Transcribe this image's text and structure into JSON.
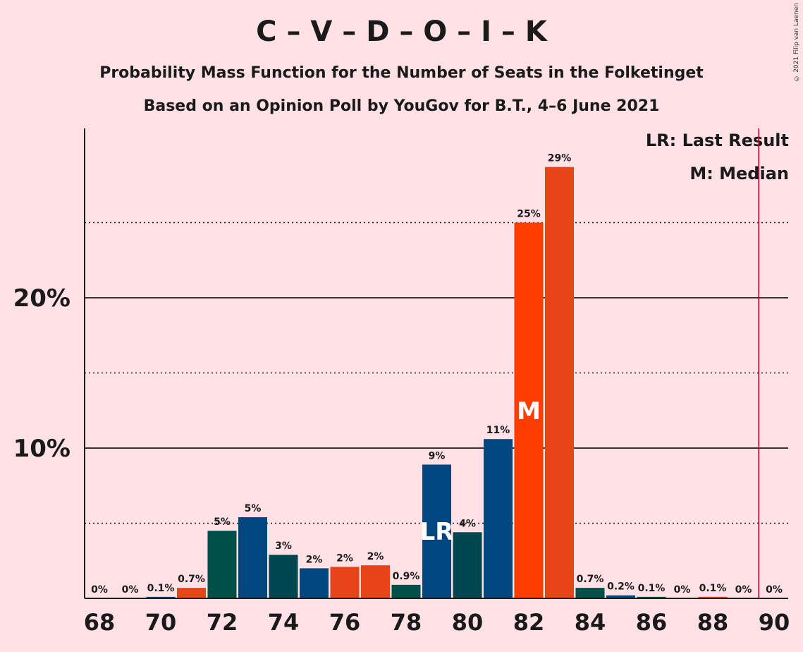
{
  "header": {
    "title": "C – V – D – O – I – K",
    "subtitle1": "Probability Mass Function for the Number of Seats in the Folketinget",
    "subtitle2": "Based on an Opinion Poll by YouGov for B.T., 4–6 June 2021",
    "copyright": "© 2021 Filip van Laenen"
  },
  "legend": {
    "last_result": "LR: Last Result",
    "median": "M: Median"
  },
  "chart_data": {
    "type": "bar",
    "x": [
      68,
      69,
      70,
      71,
      72,
      73,
      74,
      75,
      76,
      77,
      78,
      79,
      80,
      81,
      82,
      83,
      84,
      85,
      86,
      87,
      88,
      89,
      90
    ],
    "values": [
      0,
      0,
      0.1,
      0.7,
      4.5,
      5.4,
      2.9,
      2.0,
      2.1,
      2.2,
      0.9,
      8.9,
      4.4,
      10.6,
      25.0,
      28.7,
      0.7,
      0.2,
      0.1,
      0,
      0.1,
      0,
      0
    ],
    "labels": [
      "0%",
      "0%",
      "0.1%",
      "0.7%",
      "5%",
      "5%",
      "3%",
      "2%",
      "2%",
      "2%",
      "0.9%",
      "9%",
      "4%",
      "11%",
      "25%",
      "29%",
      "0.7%",
      "0.2%",
      "0.1%",
      "0%",
      "0.1%",
      "0%",
      "0%"
    ],
    "bar_colors": [
      "#E8441A",
      "#00504A",
      "#00467F",
      "#E8441A",
      "#00504A",
      "#00467F",
      "#00464F",
      "#00467F",
      "#E8441A",
      "#E8441A",
      "#00504A",
      "#00467F",
      "#00464F",
      "#00467F",
      "#FF3D00",
      "#E8441A",
      "#00504A",
      "#00467F",
      "#00464F",
      "#E8441A",
      "#E8441A",
      "#00504A",
      "#00467F"
    ],
    "xticks": [
      "68",
      "70",
      "72",
      "74",
      "76",
      "78",
      "80",
      "82",
      "84",
      "86",
      "88",
      "90"
    ],
    "yticks": [
      {
        "value": 10,
        "label": "10%"
      },
      {
        "value": 20,
        "label": "20%"
      }
    ],
    "ylim": [
      0,
      31.3
    ],
    "dotted_gridlines": [
      5,
      15,
      25
    ],
    "last_result": {
      "seat": 79,
      "label": "LR"
    },
    "median": {
      "seat": 82,
      "label": "M"
    },
    "majority_line": 89.5,
    "colors": {
      "background": "#FFE1E6",
      "majority_line": "#C0002F"
    }
  }
}
